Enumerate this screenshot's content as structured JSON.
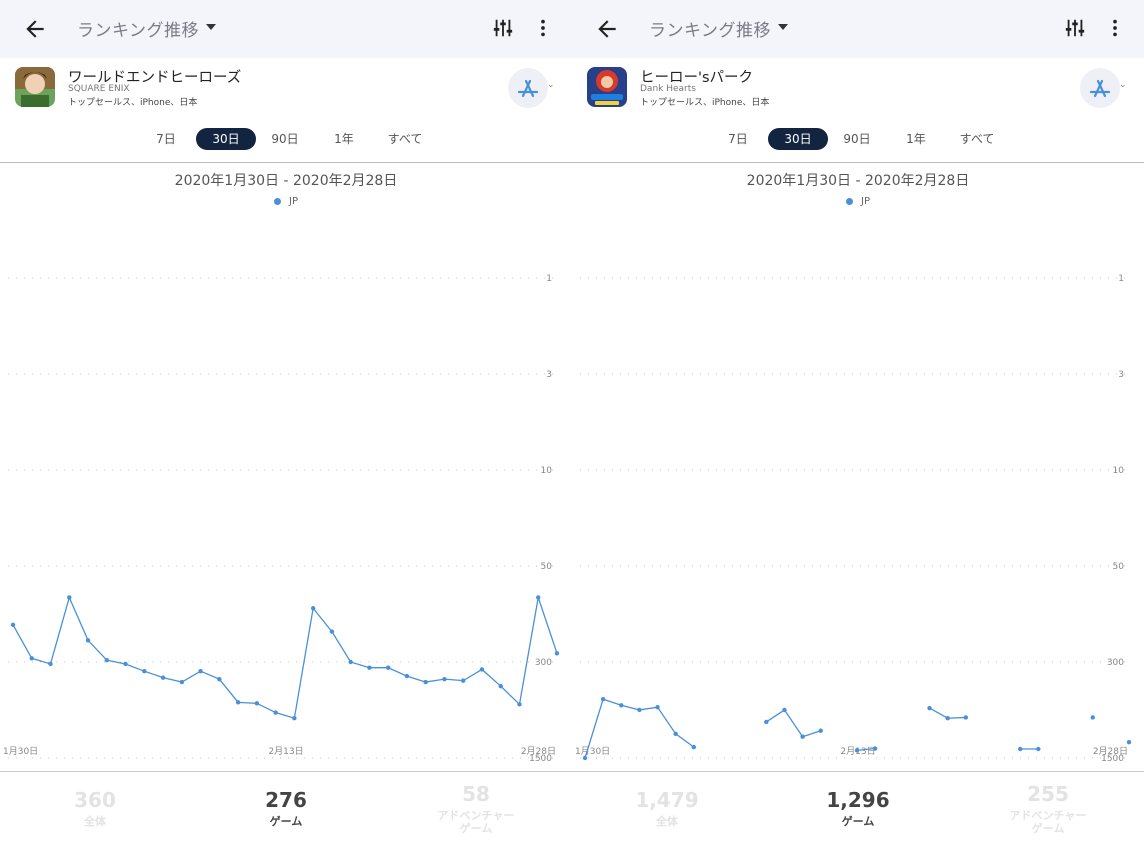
{
  "colors": {
    "accent": "#4a90d9",
    "active_pill": "#122440",
    "topbar": "#f4f5fb"
  },
  "panels": [
    {
      "header": {
        "title": "ランキング推移"
      },
      "app": {
        "name": "ワールドエンドヒーローズ",
        "publisher": "SQUARE ENIX",
        "meta": "トップセールス、iPhone、日本",
        "icon": "app-icon"
      },
      "ranges": [
        "7日",
        "30日",
        "90日",
        "1年",
        "すべて"
      ],
      "active_range": "30日",
      "date_range": "2020年1月30日 - 2020年2月28日",
      "legend": "JP",
      "stats": [
        {
          "value": "360",
          "label": "全体"
        },
        {
          "value": "276",
          "label": "ゲーム"
        },
        {
          "value": "58",
          "label": "アドベンチャー\nゲーム"
        }
      ],
      "chart_data": {
        "type": "line",
        "y_scale": "log-reversed",
        "y_ticks": [
          "1",
          "3",
          "10",
          "50",
          "300",
          "1500"
        ],
        "x_tick_labels": [
          "1月30日",
          "2月13日",
          "2月28日"
        ],
        "series": [
          {
            "name": "JP",
            "values": [
              150,
              280,
              310,
              90,
              200,
              290,
              310,
              350,
              390,
              420,
              350,
              400,
              590,
              600,
              700,
              770,
              110,
              170,
              300,
              330,
              330,
              380,
              420,
              400,
              410,
              340,
              450,
              610,
              90,
              255
            ]
          }
        ]
      }
    },
    {
      "header": {
        "title": "ランキング推移"
      },
      "app": {
        "name": "ヒーロー'sパーク",
        "publisher": "Dank Hearts",
        "meta": "トップセールス、iPhone、日本",
        "icon": "app-icon"
      },
      "ranges": [
        "7日",
        "30日",
        "90日",
        "1年",
        "すべて"
      ],
      "active_range": "30日",
      "date_range": "2020年1月30日 - 2020年2月28日",
      "legend": "JP",
      "stats": [
        {
          "value": "1,479",
          "label": "全体"
        },
        {
          "value": "1,296",
          "label": "ゲーム"
        },
        {
          "value": "255",
          "label": "アドベンチャー\nゲーム"
        }
      ],
      "chart_data": {
        "type": "line",
        "y_scale": "log-reversed",
        "y_ticks": [
          "1",
          "3",
          "10",
          "50",
          "300",
          "1500"
        ],
        "x_tick_labels": [
          "1月30日",
          "2月13日",
          "2月28日"
        ],
        "series": [
          {
            "name": "JP",
            "values": [
              1500,
              560,
              620,
              670,
              640,
              1000,
              1250,
              null,
              null,
              null,
              820,
              670,
              1050,
              950,
              null,
              1320,
              1280,
              null,
              null,
              650,
              770,
              760,
              null,
              null,
              1290,
              1290,
              null,
              null,
              760,
              null,
              1150
            ]
          }
        ]
      }
    }
  ]
}
